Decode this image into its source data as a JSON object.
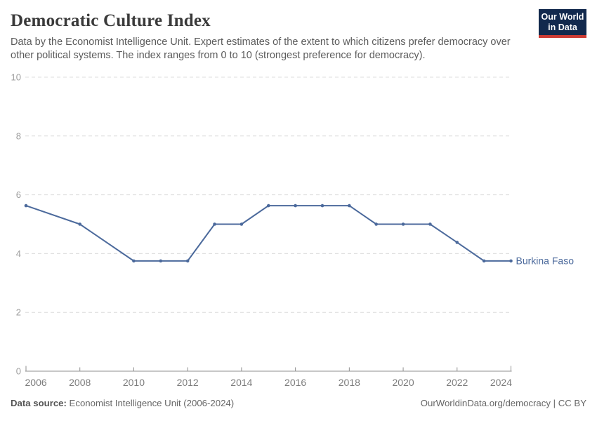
{
  "header": {
    "title": "Democratic Culture Index",
    "subtitle": "Data by the Economist Intelligence Unit. Expert estimates of the extent to which citizens prefer democracy over other political systems. The index ranges from 0 to 10 (strongest preference for democracy).",
    "logo": {
      "line1": "Our World",
      "line2": "in Data",
      "bg_color": "#12294d",
      "accent_color": "#cc3b34"
    }
  },
  "footer": {
    "source_label": "Data source:",
    "source_text": " Economist Intelligence Unit (2006-2024)",
    "credit": "OurWorldinData.org/democracy | CC BY"
  },
  "chart_data": {
    "type": "line",
    "title": "Democratic Culture Index",
    "x_axis": {
      "range": [
        2006,
        2024
      ],
      "ticks": [
        2006,
        2008,
        2010,
        2012,
        2014,
        2016,
        2018,
        2020,
        2022,
        2024
      ]
    },
    "y_axis": {
      "range": [
        0,
        10
      ],
      "ticks": [
        0,
        2,
        4,
        6,
        8,
        10
      ],
      "gridlines": "dashed-horizontal"
    },
    "series": [
      {
        "name": "Burkina Faso",
        "color": "#4C6A9C",
        "x": [
          2006,
          2008,
          2010,
          2011,
          2012,
          2013,
          2014,
          2015,
          2016,
          2017,
          2018,
          2019,
          2020,
          2021,
          2022,
          2023,
          2024
        ],
        "values": [
          5.63,
          5,
          3.75,
          3.75,
          3.75,
          5,
          5,
          5.63,
          5.63,
          5.63,
          5.63,
          5,
          5,
          5,
          4.38,
          3.75,
          3.75
        ]
      }
    ],
    "legend": "end-of-line-label",
    "theme": {
      "grid_color": "#dcdcdc",
      "axis_color": "#8f8f8f",
      "y_label_color": "#9e9e9e",
      "x_label_color": "#7c7c7c"
    }
  }
}
